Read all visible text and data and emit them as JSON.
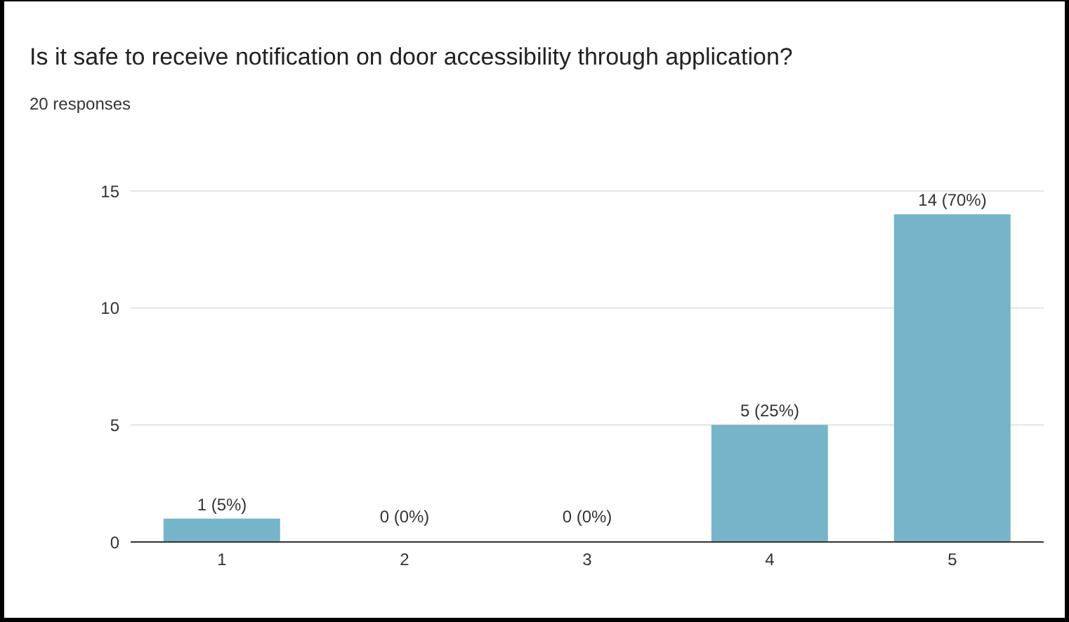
{
  "chart_data": {
    "type": "bar",
    "title": "Is it safe to receive notification on door accessibility through application?",
    "subtitle": "20 responses",
    "categories": [
      "1",
      "2",
      "3",
      "4",
      "5"
    ],
    "values": [
      1,
      0,
      0,
      5,
      14
    ],
    "color": "#76b5c9",
    "value_labels": [
      "1 (5%)",
      "0 (0%)",
      "0 (0%)",
      "5 (25%)",
      "14 (70%)"
    ],
    "ylim": [
      0,
      15
    ],
    "yticks": [
      0,
      5,
      10,
      15
    ],
    "grid": "y"
  }
}
